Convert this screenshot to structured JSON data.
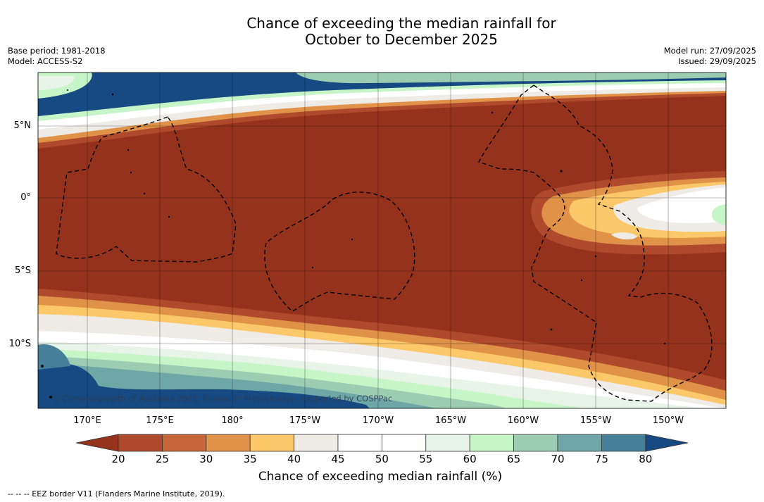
{
  "title_line1": "Chance of exceeding the median rainfall for",
  "title_line2": "October to December 2025",
  "meta_left": {
    "base_period": "Base period: 1981-2018",
    "model": "Model: ACCESS-S2"
  },
  "meta_right": {
    "model_run": "Model run: 27/09/2025",
    "issued": "Issued: 29/09/2025"
  },
  "map": {
    "lat_labels": [
      "5°N",
      "0°",
      "5°S",
      "10°S"
    ],
    "lon_labels": [
      "170°E",
      "175°E",
      "180°",
      "175°W",
      "170°W",
      "165°W",
      "160°W",
      "155°W",
      "150°W"
    ],
    "credit": "© Commonwealth of Australia 2025, Bureau of Meteorology, supported by COSPPac"
  },
  "colorbar": {
    "ticks": [
      "20",
      "25",
      "30",
      "35",
      "40",
      "45",
      "50",
      "55",
      "60",
      "65",
      "70",
      "75",
      "80"
    ],
    "colors": [
      "#95321e",
      "#b04a2c",
      "#c8673a",
      "#df9248",
      "#fcc86a",
      "#efebe7",
      "#ffffff",
      "#ffffff",
      "#e8f4e8",
      "#c6f6c8",
      "#9ccdb3",
      "#6fa6a6",
      "#467f9a",
      "#174a82"
    ],
    "label": "Chance of exceeding median rainfall (%)"
  },
  "legend_note": "--  --  -- EEZ border V11 (Flanders Marine Institute, 2019)."
}
